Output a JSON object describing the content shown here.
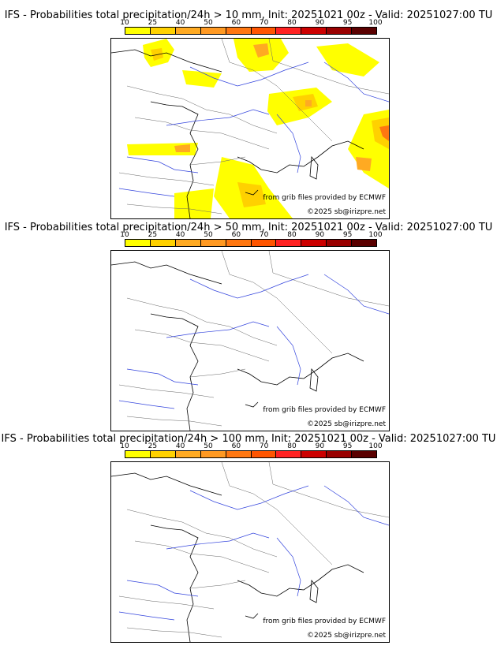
{
  "colorbar": {
    "ticks": [
      "10",
      "25",
      "40",
      "50",
      "60",
      "70",
      "80",
      "90",
      "95",
      "100"
    ],
    "colors": [
      "#ffff00",
      "#ffd100",
      "#ffaa22",
      "#ff9922",
      "#ff7711",
      "#ff5500",
      "#ff2222",
      "#cc0000",
      "#990000",
      "#5a0000"
    ]
  },
  "credits": {
    "source": "from grib files provided by ECMWF",
    "copyright": "©2025 sb@irizpre.net"
  },
  "panels": [
    {
      "title": "IFS - Probabilities total precipitation/24h > 10 mm, Init: 20251021 00z - Valid: 20251027:00 TU"
    },
    {
      "title": "IFS - Probabilities total precipitation/24h > 50 mm, Init: 20251021 00z - Valid: 20251027:00 TU"
    },
    {
      "title": "IFS - Probabilities total precipitation/24h > 100 mm, Init: 20251021 00z - Valid: 20251027:00 TU"
    }
  ]
}
